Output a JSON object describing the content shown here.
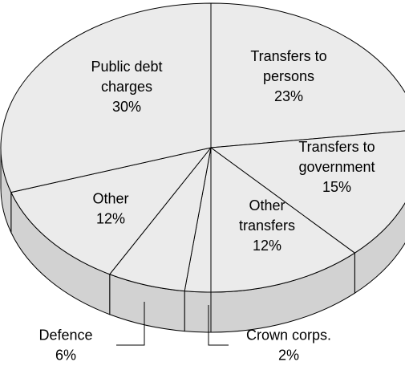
{
  "chart_data": {
    "type": "pie",
    "style": "3d",
    "slices": [
      {
        "label_lines": [
          "Transfers to",
          "persons"
        ],
        "value_text": "23%",
        "value": 23
      },
      {
        "label_lines": [
          "Transfers to",
          "government"
        ],
        "value_text": "15%",
        "value": 15
      },
      {
        "label_lines": [
          "Other",
          "transfers"
        ],
        "value_text": "12%",
        "value": 12
      },
      {
        "label_lines": [
          "Crown corps."
        ],
        "value_text": "2%",
        "value": 2
      },
      {
        "label_lines": [
          "Defence"
        ],
        "value_text": "6%",
        "value": 6
      },
      {
        "label_lines": [
          "Other"
        ],
        "value_text": "12%",
        "value": 12
      },
      {
        "label_lines": [
          "Public debt",
          "charges"
        ],
        "value_text": "30%",
        "value": 30
      }
    ],
    "colors": {
      "top": "#ebebeb",
      "side": "#d2d2d2",
      "stroke": "#000000"
    }
  }
}
